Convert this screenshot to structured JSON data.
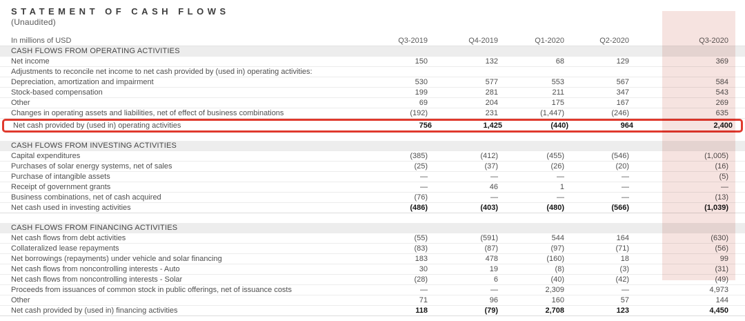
{
  "page": {
    "title": "STATEMENT OF CASH FLOWS",
    "subtitle": "(Unaudited)"
  },
  "colors": {
    "highlight_column_pink": "#f6e3e0",
    "callout_box_red": "#e03a2e",
    "section_header_bg": "#ededed"
  },
  "highlight": {
    "column": "Q3-2020",
    "callout_row": "Net cash provided by (used in) operating activities"
  },
  "table": {
    "unit_label": "In millions of USD",
    "columns": [
      "Q3-2019",
      "Q4-2019",
      "Q1-2020",
      "Q2-2020",
      "Q3-2020"
    ],
    "sections": [
      {
        "header": "CASH FLOWS FROM OPERATING ACTIVITIES",
        "rows": [
          {
            "label": "Net income",
            "values": [
              "150",
              "132",
              "68",
              "129",
              "369"
            ]
          },
          {
            "label": "Adjustments to reconcile net income to net cash provided by (used in) operating activities:",
            "values": [
              "",
              "",
              "",
              "",
              ""
            ]
          },
          {
            "label": "Depreciation, amortization and impairment",
            "values": [
              "530",
              "577",
              "553",
              "567",
              "584"
            ]
          },
          {
            "label": "Stock-based compensation",
            "values": [
              "199",
              "281",
              "211",
              "347",
              "543"
            ]
          },
          {
            "label": "Other",
            "values": [
              "69",
              "204",
              "175",
              "167",
              "269"
            ]
          },
          {
            "label": "Changes in operating assets and liabilities, net of effect of business combinations",
            "values": [
              "(192)",
              "231",
              "(1,447)",
              "(246)",
              "635"
            ]
          },
          {
            "label": "Net cash provided by (used in) operating activities",
            "values": [
              "756",
              "1,425",
              "(440)",
              "964",
              "2,400"
            ],
            "total": true,
            "boxed": true
          }
        ]
      },
      {
        "header": "CASH FLOWS FROM INVESTING ACTIVITIES",
        "rows": [
          {
            "label": "Capital expenditures",
            "values": [
              "(385)",
              "(412)",
              "(455)",
              "(546)",
              "(1,005)"
            ]
          },
          {
            "label": "Purchases of solar energy systems, net of sales",
            "values": [
              "(25)",
              "(37)",
              "(26)",
              "(20)",
              "(16)"
            ]
          },
          {
            "label": "Purchase of intangible assets",
            "values": [
              "—",
              "—",
              "—",
              "—",
              "(5)"
            ]
          },
          {
            "label": "Receipt of government grants",
            "values": [
              "—",
              "46",
              "1",
              "—",
              "—"
            ]
          },
          {
            "label": "Business combinations, net of cash acquired",
            "values": [
              "(76)",
              "—",
              "—",
              "—",
              "(13)"
            ]
          },
          {
            "label": "Net cash used in investing activities",
            "values": [
              "(486)",
              "(403)",
              "(480)",
              "(566)",
              "(1,039)"
            ],
            "total": true
          }
        ]
      },
      {
        "header": "CASH FLOWS FROM FINANCING ACTIVITIES",
        "rows": [
          {
            "label": "Net cash flows from debt activities",
            "values": [
              "(55)",
              "(591)",
              "544",
              "164",
              "(630)"
            ]
          },
          {
            "label": "Collateralized lease repayments",
            "values": [
              "(83)",
              "(87)",
              "(97)",
              "(71)",
              "(56)"
            ]
          },
          {
            "label": "Net borrowings (repayments) under vehicle and solar financing",
            "values": [
              "183",
              "478",
              "(160)",
              "18",
              "99"
            ]
          },
          {
            "label": "Net cash flows from noncontrolling interests - Auto",
            "values": [
              "30",
              "19",
              "(8)",
              "(3)",
              "(31)"
            ]
          },
          {
            "label": "Net cash flows from noncontrolling interests - Solar",
            "values": [
              "(28)",
              "6",
              "(40)",
              "(42)",
              "(49)"
            ]
          },
          {
            "label": "Proceeds from issuances of common stock in public offerings, net of issuance costs",
            "values": [
              "—",
              "—",
              "2,309",
              "—",
              "4,973"
            ]
          },
          {
            "label": "Other",
            "values": [
              "71",
              "96",
              "160",
              "57",
              "144"
            ]
          },
          {
            "label": "Net cash provided by (used in) financing activities",
            "values": [
              "118",
              "(79)",
              "2,708",
              "123",
              "4,450"
            ],
            "total": true
          }
        ]
      }
    ]
  }
}
